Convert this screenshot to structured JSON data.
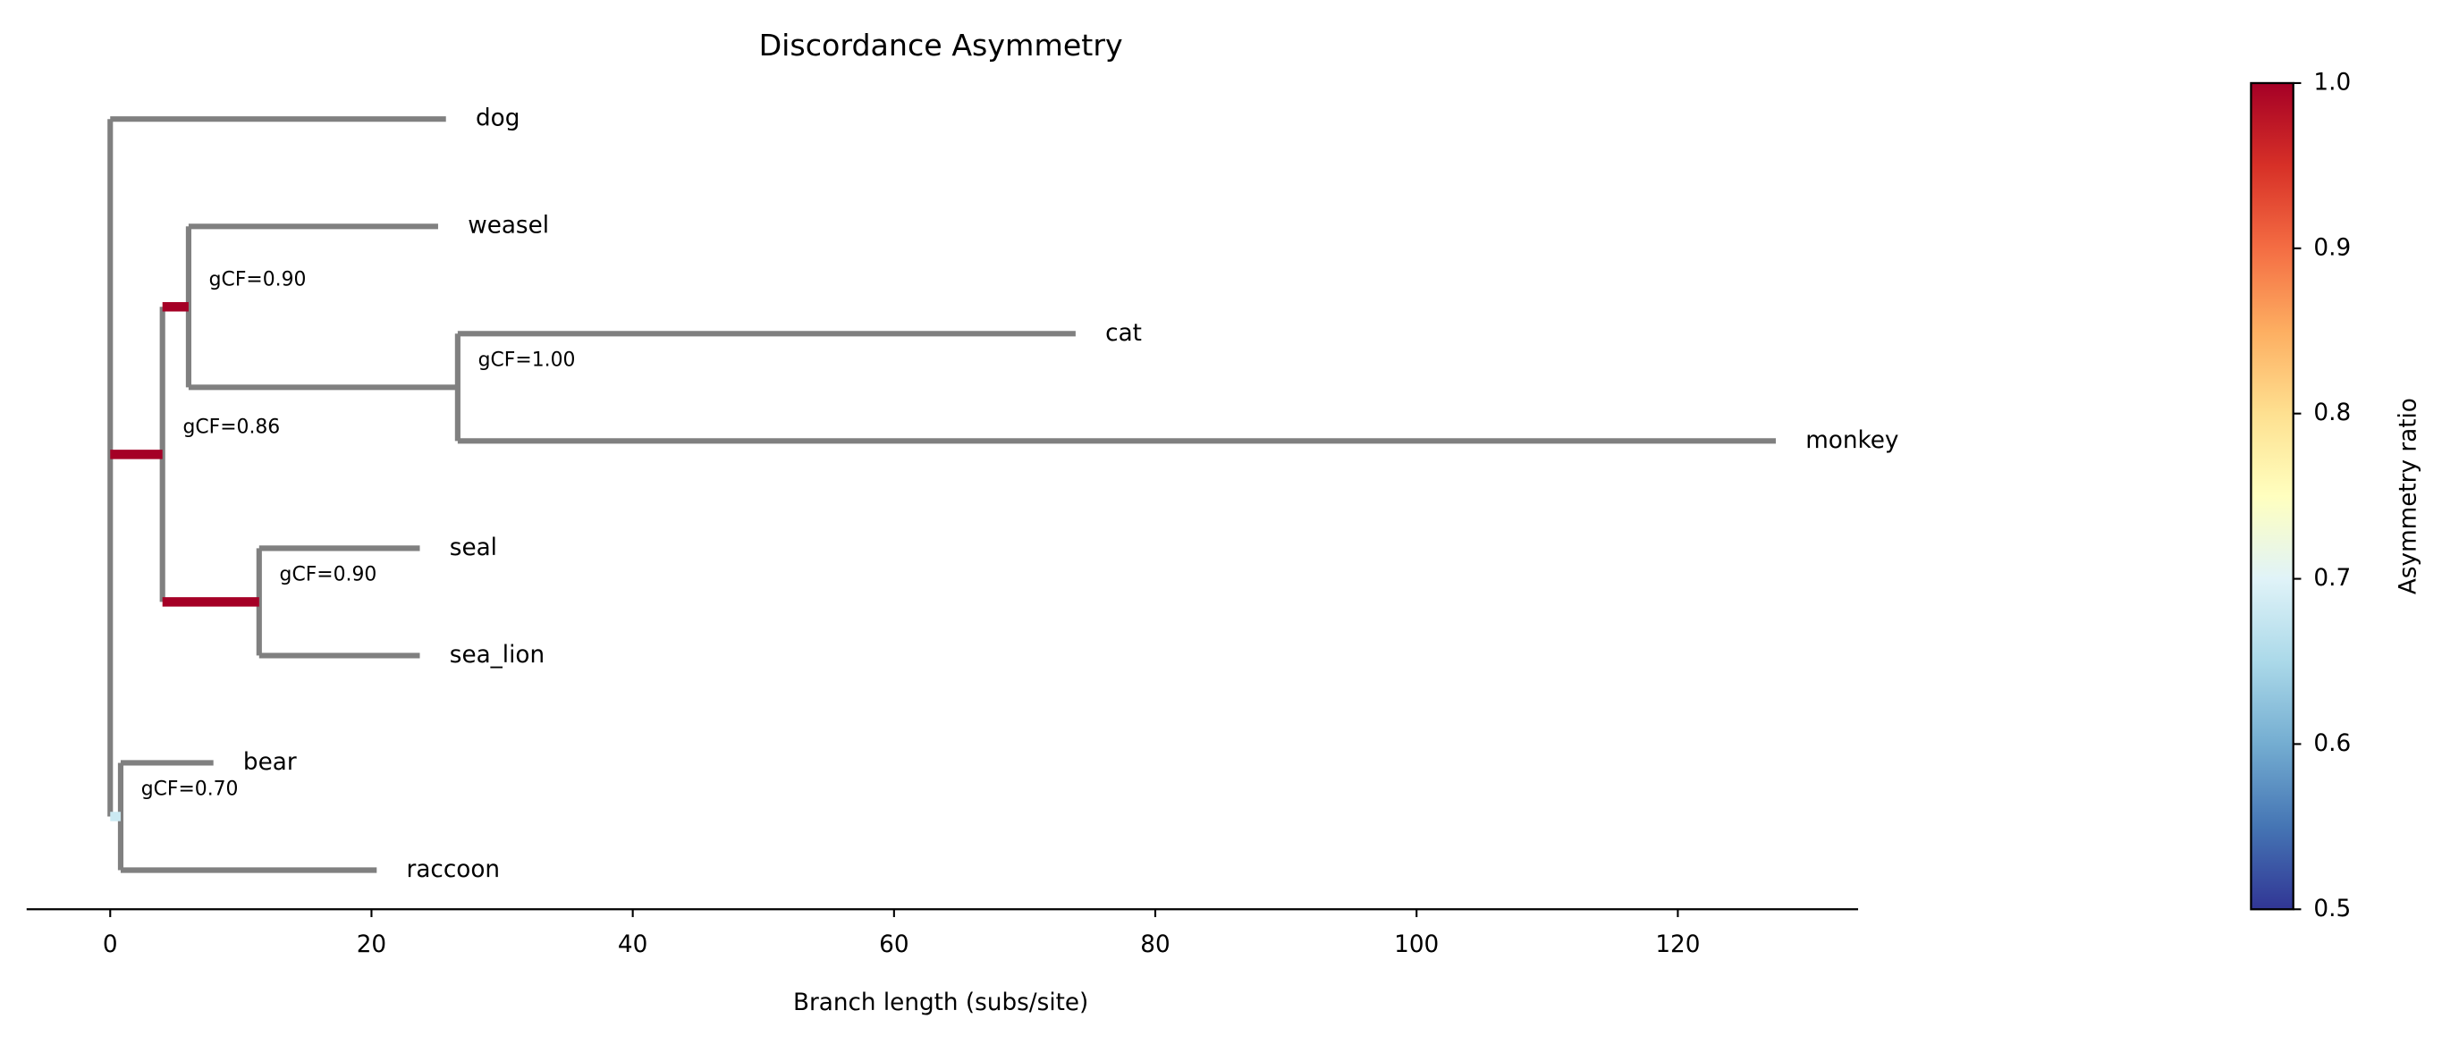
{
  "chart_data": {
    "type": "tree",
    "title": "Discordance Asymmetry",
    "x_label": "Branch length (subs/site)",
    "xlim": [
      -6.4,
      133.8
    ],
    "xticks": [
      0,
      20,
      40,
      60,
      80,
      100,
      120
    ],
    "branch_color": "#808080",
    "colormap": "RdYlBu_r",
    "colorbar_label": "Asymmetry ratio",
    "clim": [
      0.5,
      1.0
    ],
    "cticks": [
      0.5,
      0.6,
      0.7,
      0.8,
      0.9,
      {
        "value": 1.0,
        "label": "1.0"
      }
    ],
    "tree": {
      "x": 0,
      "children": [
        {
          "name": "dog",
          "x": 25.7
        },
        {
          "x": 4.0,
          "ratio": 1.0,
          "label": "gCF=0.86",
          "children": [
            {
              "x": 6.0,
              "ratio": 1.0,
              "label": "gCF=0.90",
              "children": [
                {
                  "name": "weasel",
                  "x": 25.1
                },
                {
                  "x": 26.6,
                  "label": "gCF=1.00",
                  "children": [
                    {
                      "name": "cat",
                      "x": 73.9
                    },
                    {
                      "name": "monkey",
                      "x": 127.5
                    }
                  ]
                }
              ]
            },
            {
              "x": 11.4,
              "ratio": 1.0,
              "label": "gCF=0.90",
              "children": [
                {
                  "name": "seal",
                  "x": 23.7
                },
                {
                  "name": "sea_lion",
                  "x": 23.7
                }
              ]
            }
          ]
        },
        {
          "x": 0.8,
          "ratio": 0.68,
          "label": "gCF=0.70",
          "children": [
            {
              "name": "bear",
              "x": 7.9
            },
            {
              "name": "raccoon",
              "x": 20.4
            }
          ]
        }
      ]
    }
  }
}
